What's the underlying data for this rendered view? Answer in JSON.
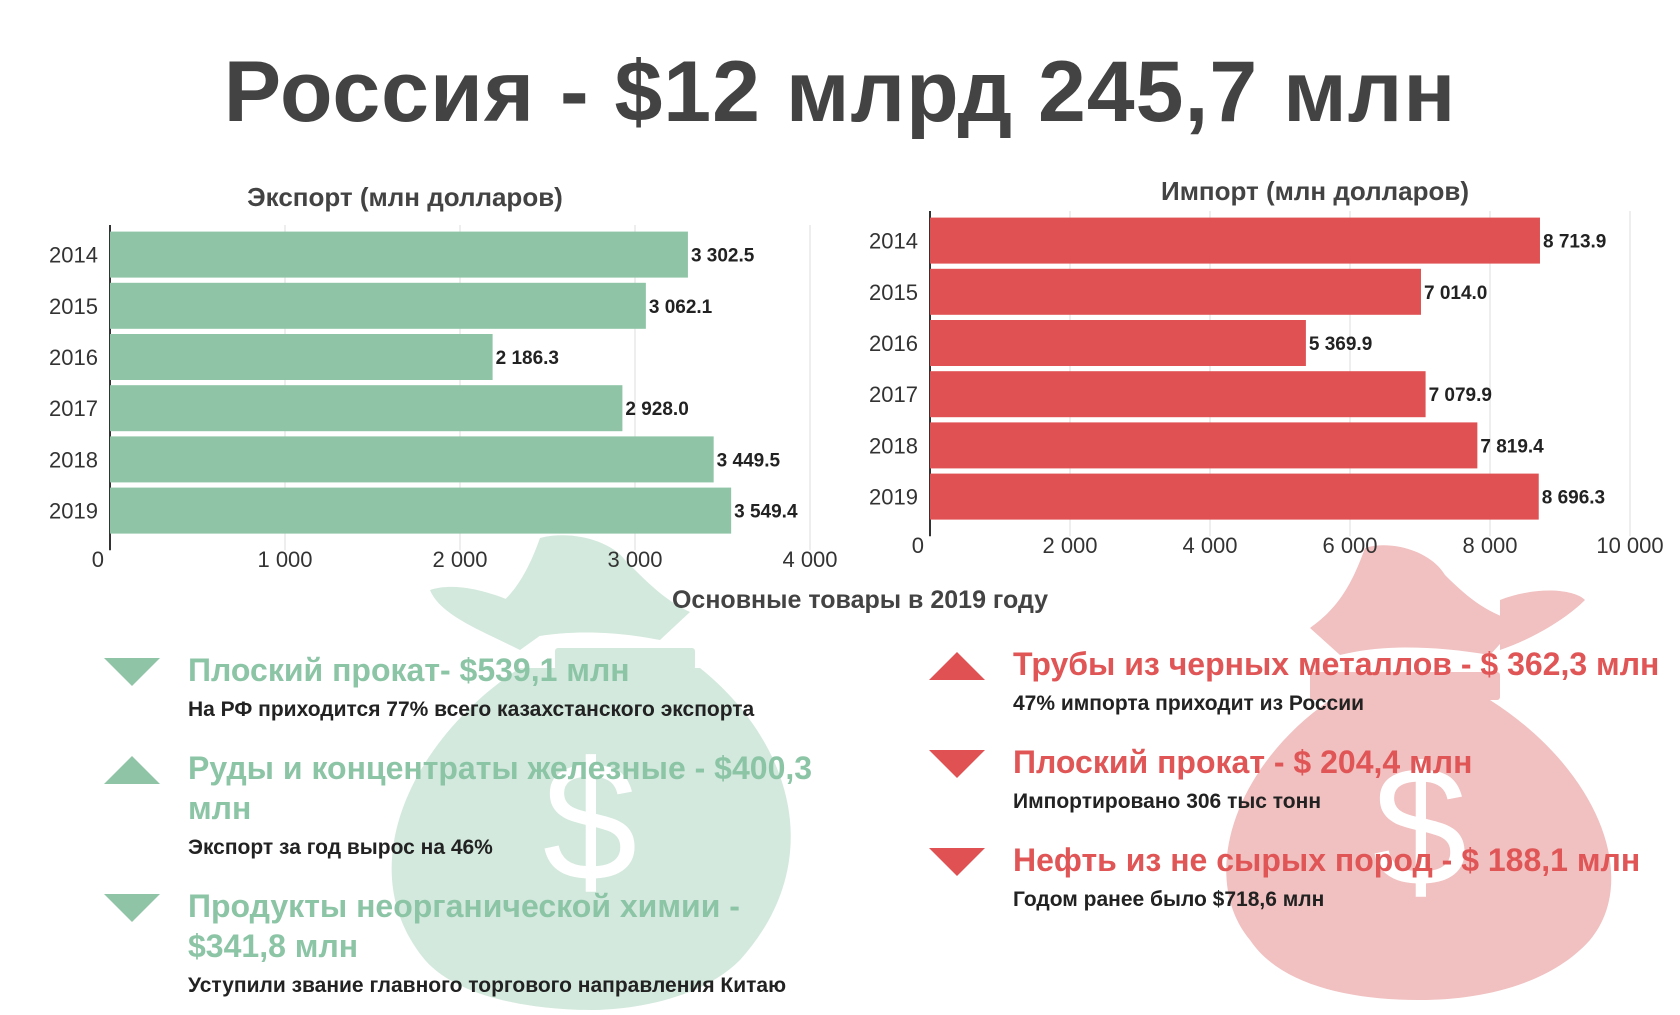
{
  "title": "Россия - $12 млрд 245,7 млн",
  "colors": {
    "export": "#8fc4a7",
    "import": "#df5152",
    "bag_export": "#d3e9dd",
    "bag_import": "#f1c0c0",
    "text": "#434343"
  },
  "chart_data": [
    {
      "type": "bar",
      "orientation": "horizontal",
      "title": "Экспорт (млн долларов)",
      "categories": [
        "2014",
        "2015",
        "2016",
        "2017",
        "2018",
        "2019"
      ],
      "values": [
        3302.5,
        3062.1,
        2186.3,
        2928.0,
        3449.5,
        3549.4
      ],
      "value_labels": [
        "3 302.5",
        "3 062.1",
        "2 186.3",
        "2 928.0",
        "3 449.5",
        "3 549.4"
      ],
      "xlim": [
        0,
        4000
      ],
      "xticks": [
        0,
        1000,
        2000,
        3000,
        4000
      ],
      "xtick_labels": [
        "0",
        "1 000",
        "2 000",
        "3 000",
        "4 000"
      ],
      "grid": true
    },
    {
      "type": "bar",
      "orientation": "horizontal",
      "title": "Импорт (млн долларов)",
      "categories": [
        "2014",
        "2015",
        "2016",
        "2017",
        "2018",
        "2019"
      ],
      "values": [
        8713.9,
        7014.0,
        5369.9,
        7079.9,
        7819.4,
        8696.3
      ],
      "value_labels": [
        "8 713.9",
        "7 014.0",
        "5 369.9",
        "7 079.9",
        "7 819.4",
        "8 696.3"
      ],
      "xlim": [
        0,
        10000
      ],
      "xticks": [
        0,
        2000,
        4000,
        6000,
        8000,
        10000
      ],
      "xtick_labels": [
        "0",
        "2 000",
        "4 000",
        "6 000",
        "8 000",
        "10 000"
      ],
      "grid": true
    }
  ],
  "goods": {
    "title": "Основные товары в 2019 году",
    "export_items": [
      {
        "name": "Плоский прокат- $539,1 млн",
        "note": "На РФ приходится 77% всего казахстанского экспорта",
        "trend": "down"
      },
      {
        "name": "Руды и концентраты железные - $400,3 млн",
        "note": "Экспорт за год вырос на 46%",
        "trend": "up"
      },
      {
        "name": "Продукты неорганической химии - $341,8 млн",
        "note": "Уступили звание главного торгового направления Китаю",
        "trend": "down"
      }
    ],
    "import_items": [
      {
        "name": "Трубы из черных металлов - $ 362,3 млн",
        "note": "47% импорта приходит из России",
        "trend": "up"
      },
      {
        "name": "Плоский прокат - $ 204,4 млн",
        "note": "Импортировано 306 тыс тонн",
        "trend": "down"
      },
      {
        "name": "Нефть из не сырых пород - $ 188,1 млн",
        "note": "Годом ранее было $718,6 млн",
        "trend": "down"
      }
    ]
  }
}
